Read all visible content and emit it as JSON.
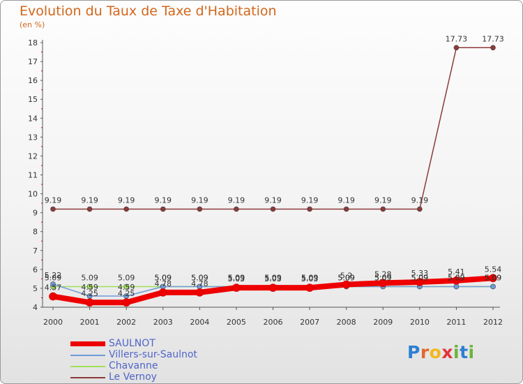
{
  "chart_data": {
    "type": "line",
    "title": "Evolution du Taux de Taxe d'Habitation",
    "subtitle": "(en %)",
    "xlabel": "",
    "ylabel": "",
    "categories": [
      "2000",
      "2001",
      "2002",
      "2003",
      "2004",
      "2005",
      "2006",
      "2007",
      "2008",
      "2009",
      "2010",
      "2011",
      "2012"
    ],
    "ylim": [
      4,
      18
    ],
    "yticks": [
      4,
      5,
      6,
      7,
      8,
      9,
      10,
      11,
      12,
      13,
      14,
      15,
      16,
      17,
      18
    ],
    "grid": false,
    "legend_position": "bottom-left",
    "series": [
      {
        "name": "SAULNOT",
        "color": "#ee0000",
        "values": [
          4.57,
          4.25,
          4.25,
          4.78,
          4.78,
          5.03,
          5.03,
          5.03,
          5.2,
          5.28,
          5.33,
          5.41,
          5.54
        ],
        "labels": [
          "4.57",
          "4.25",
          "4.25",
          "4.78",
          "4.78",
          "5.03",
          "5.03",
          "5.03",
          "5.2",
          "5.28",
          "5.33",
          "5.41",
          "5.54"
        ]
      },
      {
        "name": "Villers-sur-Saulnot",
        "color": "#6f9bd8",
        "values": [
          5.22,
          4.59,
          4.59,
          5.09,
          5.09,
          5.09,
          5.09,
          5.09,
          5.09,
          5.09,
          5.09,
          5.09,
          5.09
        ],
        "labels": [
          "5.22",
          "4.59",
          "4.59",
          "5.09",
          "5.09",
          "5.09",
          "5.09",
          "5.09",
          "5.09",
          "5.09",
          "5.09",
          "5.09",
          "5.09"
        ]
      },
      {
        "name": "Chavanne",
        "color": "#9ee05a",
        "values": [
          5.09,
          5.09,
          5.09,
          5.09,
          5.09,
          5.09,
          5.09,
          5.09,
          5.09,
          5.09,
          5.09,
          5.09,
          5.09
        ],
        "labels": [
          "5.09",
          "5.09",
          "5.09",
          "5.09",
          "5.09",
          "5.09",
          "5.09",
          "5.09",
          "5.09",
          "5.09",
          "5.09",
          "5.09",
          "5.09"
        ]
      },
      {
        "name": "Le Vernoy",
        "color": "#8b3a3a",
        "values": [
          9.19,
          9.19,
          9.19,
          9.19,
          9.19,
          9.19,
          9.19,
          9.19,
          9.19,
          9.19,
          9.19,
          17.73,
          17.73
        ],
        "labels": [
          "9.19",
          "9.19",
          "9.19",
          "9.19",
          "9.19",
          "9.19",
          "9.19",
          "9.19",
          "9.19",
          "9.19",
          "9.19",
          "17.73",
          "17.73"
        ]
      }
    ]
  },
  "legend": {
    "items": [
      {
        "label": "SAULNOT",
        "color": "#ee0000"
      },
      {
        "label": "Villers-sur-Saulnot",
        "color": "#6f9bd8"
      },
      {
        "label": "Chavanne",
        "color": "#9ee05a"
      },
      {
        "label": "Le Vernoy",
        "color": "#8b3a3a"
      }
    ]
  },
  "logo": {
    "text": "Proxiti",
    "letters": [
      {
        "ch": "P",
        "color": "#2d7fd4"
      },
      {
        "ch": "r",
        "color": "#e2672b"
      },
      {
        "ch": "o",
        "color": "#f2b81b"
      },
      {
        "ch": "x",
        "color": "#e2353a"
      },
      {
        "ch": "i",
        "color": "#6ab53a"
      },
      {
        "ch": "t",
        "color": "#2d7fd4"
      },
      {
        "ch": "i",
        "color": "#6ab53a"
      }
    ]
  }
}
